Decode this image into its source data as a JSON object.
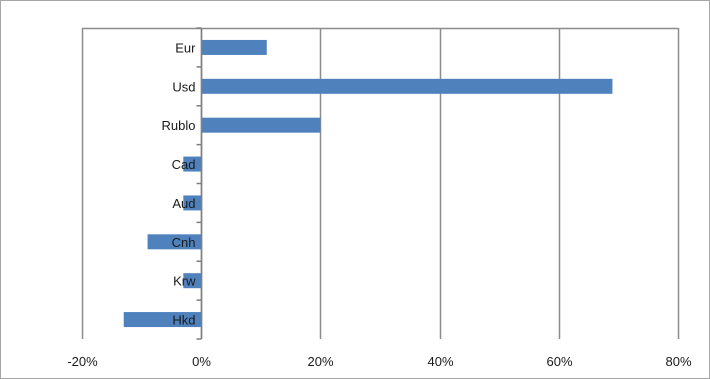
{
  "chart_data": {
    "type": "bar",
    "orientation": "horizontal",
    "categories": [
      "Eur",
      "Usd",
      "Rublo",
      "Cad",
      "Aud",
      "Cnh",
      "Krw",
      "Hkd"
    ],
    "values": [
      11,
      69,
      20,
      -3,
      -3,
      -9,
      -3,
      -13
    ],
    "xlim": [
      -20,
      80
    ],
    "x_ticks": [
      -20,
      0,
      20,
      40,
      60,
      80
    ],
    "tick_labels": [
      "-20%",
      "0%",
      "20%",
      "40%",
      "60%",
      "80%"
    ],
    "grid": "vertical",
    "legend": "none",
    "bar_color": "#4f81bd",
    "grid_color": "#8c8c8c"
  }
}
